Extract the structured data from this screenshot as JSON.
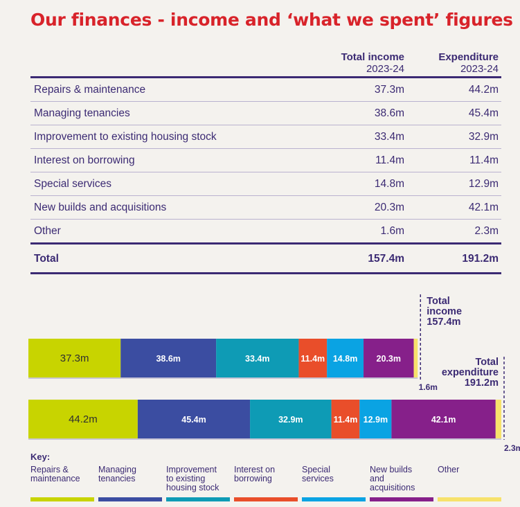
{
  "title": "Our finances - income and ‘what we spent’ figures",
  "table": {
    "col1_title": "Total income",
    "col1_sub": "2023-24",
    "col2_title": "Expenditure",
    "col2_sub": "2023-24",
    "rows": [
      {
        "label": "Repairs & maintenance",
        "income": "37.3m",
        "expenditure": "44.2m"
      },
      {
        "label": "Managing tenancies",
        "income": "38.6m",
        "expenditure": "45.4m"
      },
      {
        "label": "Improvement to existing housing stock",
        "income": "33.4m",
        "expenditure": "32.9m"
      },
      {
        "label": "Interest on borrowing",
        "income": "11.4m",
        "expenditure": "11.4m"
      },
      {
        "label": "Special services",
        "income": "14.8m",
        "expenditure": "12.9m"
      },
      {
        "label": "New builds and acquisitions",
        "income": "20.3m",
        "expenditure": "42.1m"
      },
      {
        "label": "Other",
        "income": "1.6m",
        "expenditure": "2.3m"
      }
    ],
    "total": {
      "label": "Total",
      "income": "157.4m",
      "expenditure": "191.2m"
    }
  },
  "chart_data": {
    "type": "bar",
    "orientation": "horizontal-stacked",
    "categories": [
      "Repairs & maintenance",
      "Managing tenancies",
      "Improvement to existing housing stock",
      "Interest on borrowing",
      "Special services",
      "New builds and acquisitions",
      "Other"
    ],
    "colors": [
      "#c8d400",
      "#3b4da1",
      "#0e9bb5",
      "#e94e2a",
      "#0aa3e3",
      "#86208a",
      "#f7e26b"
    ],
    "series": [
      {
        "values": [
          37.3,
          38.6,
          33.4,
          11.4,
          14.8,
          20.3,
          1.6
        ],
        "labels": [
          "37.3m",
          "38.6m",
          "33.4m",
          "11.4m",
          "14.8m",
          "20.3m",
          "1.6m"
        ],
        "total_label_lines": [
          "Total",
          "income",
          "157.4m"
        ]
      },
      {
        "values": [
          44.2,
          45.4,
          32.9,
          11.4,
          12.9,
          42.1,
          2.3
        ],
        "labels": [
          "44.2m",
          "45.4m",
          "32.9m",
          "11.4m",
          "12.9m",
          "42.1m",
          "2.3m"
        ],
        "total_label_lines": [
          "Total",
          "expenditure",
          "191.2m"
        ]
      }
    ]
  },
  "key": {
    "title": "Key:",
    "items": [
      {
        "label": "Repairs &\nmaintenance",
        "color": "#c8d400"
      },
      {
        "label": "Managing\ntenancies",
        "color": "#3b4da1"
      },
      {
        "label": "Improvement\nto existing\nhousing stock",
        "color": "#0e9bb5"
      },
      {
        "label": "Interest on\nborrowing",
        "color": "#e94e2a"
      },
      {
        "label": "Special\nservices",
        "color": "#0aa3e3"
      },
      {
        "label": "New builds\nand\nacquisitions",
        "color": "#86208a"
      },
      {
        "label": "Other",
        "color": "#f7e26b"
      }
    ]
  }
}
